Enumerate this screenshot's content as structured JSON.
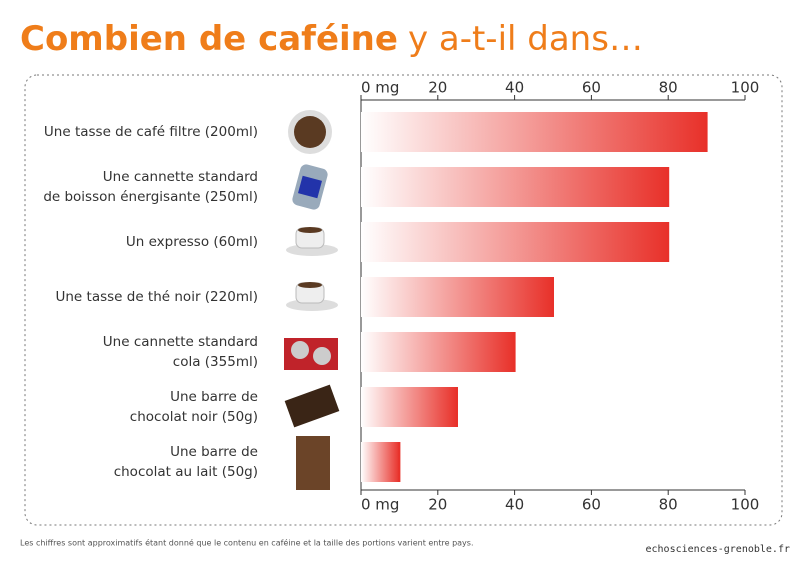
{
  "chart_data": {
    "type": "bar",
    "orientation": "horizontal",
    "title": "Combien de caféine",
    "subtitle": "y a-t-il dans…",
    "categories": [
      "Une tasse de café filtre (200ml)",
      "Une cannette standard\nde boisson énergisante (250ml)",
      "Un expresso (60ml)",
      "Une tasse de thé noir (220ml)",
      "Une cannette standard\ncola (355ml)",
      "Une barre de\nchocolat noir (50g)",
      "Une barre de\nchocolat au lait  (50g)"
    ],
    "values": [
      90,
      80,
      80,
      50,
      40,
      25,
      10
    ],
    "color": "#e8312a",
    "xlim": [
      0,
      100
    ],
    "xticks": [
      {
        "value": 0,
        "label": "0 mg"
      },
      20,
      40,
      60,
      80,
      100
    ],
    "grid": false,
    "footnote": "Les chiffres sont approximatifs étant donné que le contenu en caféine et la taille des portions varient entre pays.",
    "source": "echosciences-grenoble.fr"
  }
}
